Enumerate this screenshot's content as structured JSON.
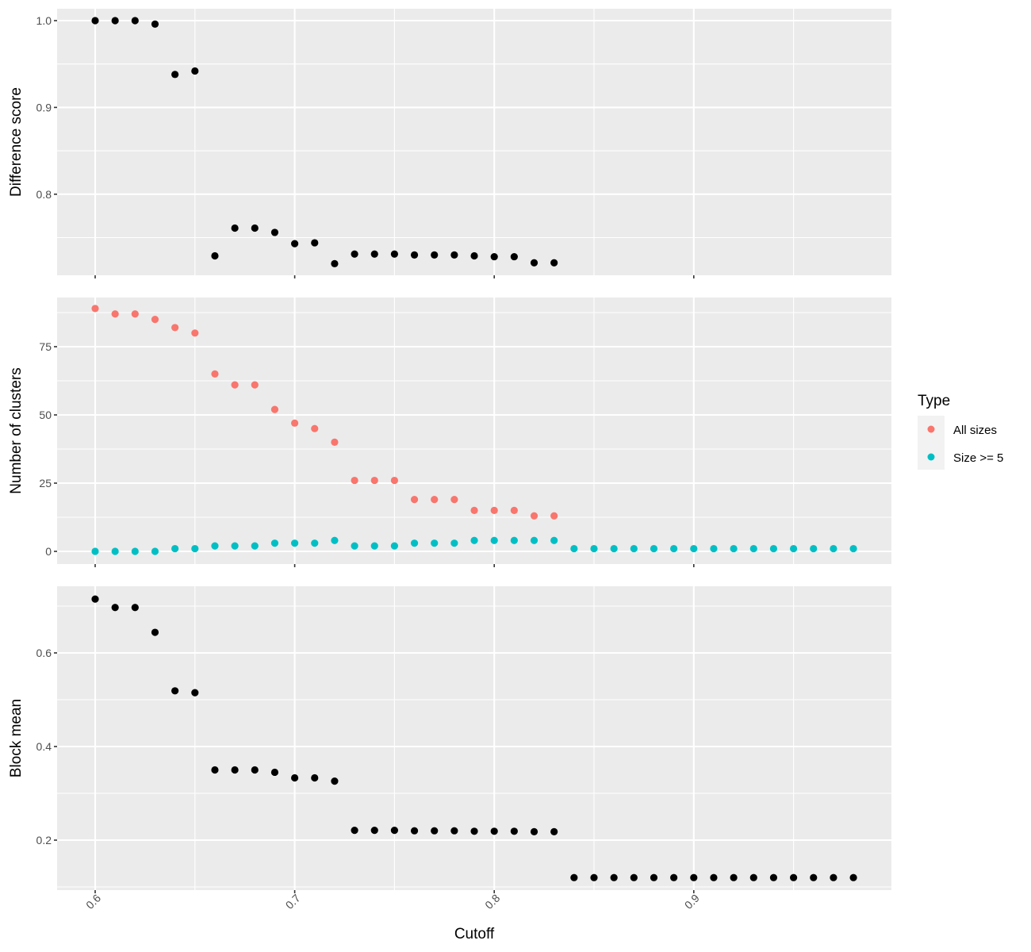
{
  "chart_data": [
    {
      "type": "scatter",
      "ylabel": "Difference score",
      "yticks": [
        0.8,
        0.9,
        1.0
      ],
      "ytick_labels": [
        "0.8",
        "0.9",
        "1.0"
      ],
      "ylim": [
        0.71,
        1.0
      ],
      "xlim": [
        0.6,
        0.98
      ],
      "series": [
        {
          "color": "#000000",
          "x": [
            0.6,
            0.61,
            0.62,
            0.63,
            0.64,
            0.65,
            0.66,
            0.67,
            0.68,
            0.69,
            0.7,
            0.71,
            0.72,
            0.73,
            0.74,
            0.75,
            0.76,
            0.77,
            0.78,
            0.79,
            0.8,
            0.81,
            0.82,
            0.83
          ],
          "y": [
            1.0,
            1.0,
            1.0,
            0.996,
            0.938,
            0.942,
            0.729,
            0.761,
            0.761,
            0.756,
            0.743,
            0.744,
            0.72,
            0.731,
            0.731,
            0.731,
            0.73,
            0.73,
            0.73,
            0.729,
            0.728,
            0.728,
            0.721,
            0.721
          ]
        }
      ]
    },
    {
      "type": "scatter",
      "ylabel": "Number of clusters",
      "yticks": [
        0,
        25,
        50,
        75
      ],
      "ytick_labels": [
        "0",
        "25",
        "50",
        "75"
      ],
      "ylim": [
        0,
        89
      ],
      "xlim": [
        0.6,
        0.98
      ],
      "series": [
        {
          "name": "All sizes",
          "color": "#F8766D",
          "x": [
            0.6,
            0.61,
            0.62,
            0.63,
            0.64,
            0.65,
            0.66,
            0.67,
            0.68,
            0.69,
            0.7,
            0.71,
            0.72,
            0.73,
            0.74,
            0.75,
            0.76,
            0.77,
            0.78,
            0.79,
            0.8,
            0.81,
            0.82,
            0.83
          ],
          "y": [
            89,
            87,
            87,
            85,
            82,
            80,
            65,
            61,
            61,
            52,
            47,
            45,
            40,
            26,
            26,
            26,
            19,
            19,
            19,
            15,
            15,
            15,
            13,
            13
          ]
        },
        {
          "name": "Size >= 5",
          "color": "#00BFC4",
          "x": [
            0.6,
            0.61,
            0.62,
            0.63,
            0.64,
            0.65,
            0.66,
            0.67,
            0.68,
            0.69,
            0.7,
            0.71,
            0.72,
            0.73,
            0.74,
            0.75,
            0.76,
            0.77,
            0.78,
            0.79,
            0.8,
            0.81,
            0.82,
            0.83,
            0.84,
            0.85,
            0.86,
            0.87,
            0.88,
            0.89,
            0.9,
            0.91,
            0.92,
            0.93,
            0.94,
            0.95,
            0.96,
            0.97,
            0.98
          ],
          "y": [
            0,
            0,
            0,
            0,
            1,
            1,
            2,
            2,
            2,
            3,
            3,
            3,
            4,
            2,
            2,
            2,
            3,
            3,
            3,
            4,
            4,
            4,
            4,
            4,
            1,
            1,
            1,
            1,
            1,
            1,
            1,
            1,
            1,
            1,
            1,
            1,
            1,
            1,
            1
          ]
        }
      ]
    },
    {
      "type": "scatter",
      "ylabel": "Block mean",
      "yticks": [
        0.2,
        0.4,
        0.6
      ],
      "ytick_labels": [
        "0.2",
        "0.4",
        "0.6"
      ],
      "ylim": [
        0.12,
        0.715
      ],
      "xlim": [
        0.6,
        0.98
      ],
      "xlabel": "Cutoff",
      "xticks": [
        0.6,
        0.7,
        0.8,
        0.9
      ],
      "xtick_labels": [
        "0.6",
        "0.7",
        "0.8",
        "0.9"
      ],
      "series": [
        {
          "color": "#000000",
          "x": [
            0.6,
            0.61,
            0.62,
            0.63,
            0.64,
            0.65,
            0.66,
            0.67,
            0.68,
            0.69,
            0.7,
            0.71,
            0.72,
            0.73,
            0.74,
            0.75,
            0.76,
            0.77,
            0.78,
            0.79,
            0.8,
            0.81,
            0.82,
            0.83,
            0.84,
            0.85,
            0.86,
            0.87,
            0.88,
            0.89,
            0.9,
            0.91,
            0.92,
            0.93,
            0.94,
            0.95,
            0.96,
            0.97,
            0.98
          ],
          "y": [
            0.715,
            0.697,
            0.697,
            0.644,
            0.519,
            0.515,
            0.35,
            0.35,
            0.35,
            0.345,
            0.333,
            0.333,
            0.326,
            0.221,
            0.221,
            0.221,
            0.22,
            0.22,
            0.22,
            0.219,
            0.219,
            0.219,
            0.218,
            0.218,
            0.12,
            0.12,
            0.12,
            0.12,
            0.12,
            0.12,
            0.12,
            0.12,
            0.12,
            0.12,
            0.12,
            0.12,
            0.12,
            0.12,
            0.12
          ]
        }
      ]
    }
  ],
  "legend": {
    "title": "Type",
    "items": [
      {
        "label": "All sizes",
        "color": "#F8766D"
      },
      {
        "label": "Size >= 5",
        "color": "#00BFC4"
      }
    ]
  }
}
